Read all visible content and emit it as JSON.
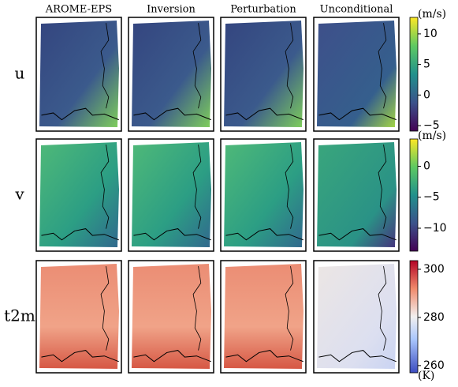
{
  "columns": [
    "AROME-EPS",
    "Inversion",
    "Perturbation",
    "Unconditional"
  ],
  "rows": [
    {
      "label": "u",
      "unit": "(m/s)",
      "colormap": "viridis",
      "colorbar": {
        "lim": [
          -5.9,
          12.7
        ],
        "ticks": [
          {
            "value": -5,
            "label": "−5"
          },
          0,
          5,
          10
        ]
      }
    },
    {
      "label": "v",
      "unit": "(m/s)",
      "colormap": "viridis",
      "colorbar": {
        "lim": [
          -13.7,
          4.4
        ],
        "ticks": [
          {
            "value": -10,
            "label": "−10"
          },
          {
            "value": -5,
            "label": "−5"
          },
          0
        ]
      }
    },
    {
      "label": "t2m",
      "unit": "(K)",
      "colormap": "RdBu_r",
      "colorbar": {
        "lim": [
          257,
          303.6
        ],
        "ticks": [
          260,
          280,
          300
        ]
      }
    }
  ]
}
